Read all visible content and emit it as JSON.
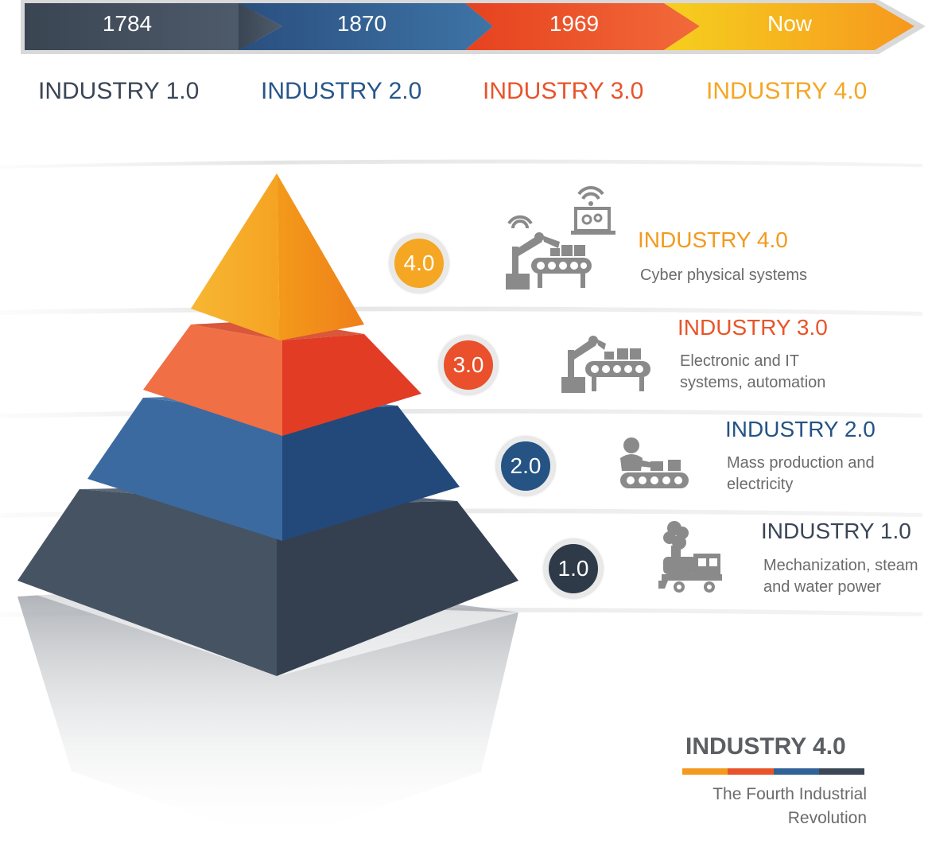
{
  "timeline": {
    "years": [
      {
        "label": "1784",
        "color": "#3f4a5a"
      },
      {
        "label": "1870",
        "color": "#2b5a8a"
      },
      {
        "label": "1969",
        "color": "#e8542a"
      },
      {
        "label": "Now",
        "color": "#f5a623"
      }
    ],
    "eras": [
      {
        "label": "INDUSTRY 1.0",
        "color": "#3a4656"
      },
      {
        "label": "INDUSTRY 2.0",
        "color": "#27568a"
      },
      {
        "label": "INDUSTRY 3.0",
        "color": "#e8542a"
      },
      {
        "label": "INDUSTRY 4.0",
        "color": "#f5a623"
      }
    ]
  },
  "tiers": [
    {
      "badge": "4.0",
      "title": "INDUSTRY 4.0",
      "description": "Cyber physical systems",
      "color": "#f4a121",
      "icon": "robot-arm-laptop-wifi-icon"
    },
    {
      "badge": "3.0",
      "title": "INDUSTRY 3.0",
      "description": "Electronic and IT\nsystems, automation",
      "color": "#e9502b",
      "icon": "robot-arm-conveyor-icon"
    },
    {
      "badge": "2.0",
      "title": "INDUSTRY 2.0",
      "description": "Mass production and\nelectricity",
      "color": "#245384",
      "icon": "worker-conveyor-icon"
    },
    {
      "badge": "1.0",
      "title": "INDUSTRY 1.0",
      "description": "Mechanization, steam\nand water power",
      "color": "#3a4656",
      "icon": "steam-locomotive-icon"
    }
  ],
  "legend": {
    "title": "INDUSTRY 4.0",
    "subtitle": "The Fourth Industrial Revolution",
    "colors": [
      "#f39a1e",
      "#e8542a",
      "#2f6296",
      "#3c4756"
    ]
  }
}
